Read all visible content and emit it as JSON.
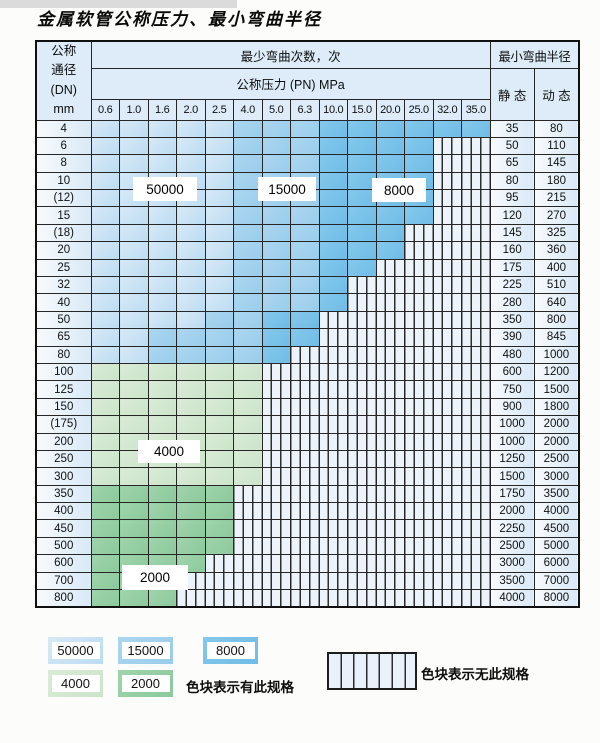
{
  "title": "金属软管公称压力、最小弯曲半径",
  "table": {
    "header": {
      "dn_line1": "公称",
      "dn_line2": "通径",
      "dn_line3": "(DN)",
      "dn_line4": "mm",
      "bend_cycles_label": "最少弯曲次数，次",
      "pressure_label": "公称压力 (PN) MPa",
      "radius_label": "最小弯曲半径",
      "static_label": "静 态",
      "dynamic_label": "动 态"
    }
  },
  "overlays": {
    "v50000": "50000",
    "v15000": "15000",
    "v8000": "8000",
    "v4000": "4000",
    "v2000": "2000"
  },
  "legend": {
    "values": [
      "50000",
      "15000",
      "8000",
      "4000",
      "2000"
    ],
    "has_spec_text": "色块表示有此规格",
    "no_spec_text": "色块表示无此规格"
  },
  "colors": {
    "border": "#262626",
    "header_bg": "#ddecf8",
    "hatch_bg": "#edf3fa",
    "hatch_line": "#2f2f2f",
    "label_cell_grad": [
      "#f7fafd",
      "#d9e9f6"
    ],
    "tiers": {
      "50000": {
        "c1": "#d7e9f7",
        "c2": "#bcdcf2"
      },
      "15000": {
        "c1": "#abd6f0",
        "c2": "#99cdeb"
      },
      "8000": {
        "c1": "#85c8ec",
        "c2": "#6fbce6"
      },
      "4000": {
        "c1": "#daebd7",
        "c2": "#cbe4c9"
      },
      "2000": {
        "c1": "#a0d4ac",
        "c2": "#8cc99c"
      }
    }
  },
  "chart_data": {
    "type": "table",
    "title": "金属软管公称压力、最小弯曲半径",
    "xlabel": "公称压力 (PN) MPa",
    "ylabel": "公称通径 (DN) mm",
    "pressures_mpa": [
      "0.6",
      "1.0",
      "1.6",
      "2.0",
      "2.5",
      "4.0",
      "5.0",
      "6.3",
      "10.0",
      "15.0",
      "20.0",
      "25.0",
      "32.0",
      "35.0"
    ],
    "cell_value_meaning": "最少弯曲次数，次 (null = 无此规格)",
    "radius_columns": [
      "静 态",
      "动 态"
    ],
    "rows": [
      {
        "dn": "4",
        "cycles": [
          50000,
          50000,
          50000,
          50000,
          50000,
          15000,
          15000,
          15000,
          8000,
          8000,
          8000,
          8000,
          8000,
          8000
        ],
        "static": "35",
        "dynamic": "80"
      },
      {
        "dn": "6",
        "cycles": [
          50000,
          50000,
          50000,
          50000,
          50000,
          15000,
          15000,
          15000,
          8000,
          8000,
          8000,
          8000,
          null,
          null
        ],
        "static": "50",
        "dynamic": "110"
      },
      {
        "dn": "8",
        "cycles": [
          50000,
          50000,
          50000,
          50000,
          50000,
          15000,
          15000,
          15000,
          8000,
          8000,
          8000,
          8000,
          null,
          null
        ],
        "static": "65",
        "dynamic": "145"
      },
      {
        "dn": "10",
        "cycles": [
          50000,
          50000,
          50000,
          50000,
          50000,
          15000,
          15000,
          15000,
          8000,
          8000,
          8000,
          8000,
          null,
          null
        ],
        "static": "80",
        "dynamic": "180"
      },
      {
        "dn": "(12)",
        "cycles": [
          50000,
          50000,
          50000,
          50000,
          50000,
          15000,
          15000,
          15000,
          8000,
          8000,
          8000,
          8000,
          null,
          null
        ],
        "static": "95",
        "dynamic": "215"
      },
      {
        "dn": "15",
        "cycles": [
          50000,
          50000,
          50000,
          50000,
          50000,
          15000,
          15000,
          15000,
          8000,
          8000,
          8000,
          8000,
          null,
          null
        ],
        "static": "120",
        "dynamic": "270"
      },
      {
        "dn": "(18)",
        "cycles": [
          50000,
          50000,
          50000,
          50000,
          50000,
          15000,
          15000,
          15000,
          8000,
          8000,
          8000,
          null,
          null,
          null
        ],
        "static": "145",
        "dynamic": "325"
      },
      {
        "dn": "20",
        "cycles": [
          50000,
          50000,
          50000,
          50000,
          50000,
          15000,
          15000,
          15000,
          8000,
          8000,
          8000,
          null,
          null,
          null
        ],
        "static": "160",
        "dynamic": "360"
      },
      {
        "dn": "25",
        "cycles": [
          50000,
          50000,
          50000,
          50000,
          50000,
          15000,
          15000,
          15000,
          8000,
          8000,
          null,
          null,
          null,
          null
        ],
        "static": "175",
        "dynamic": "400"
      },
      {
        "dn": "32",
        "cycles": [
          50000,
          50000,
          50000,
          50000,
          50000,
          15000,
          15000,
          15000,
          8000,
          null,
          null,
          null,
          null,
          null
        ],
        "static": "225",
        "dynamic": "510"
      },
      {
        "dn": "40",
        "cycles": [
          50000,
          50000,
          50000,
          50000,
          50000,
          15000,
          15000,
          15000,
          8000,
          null,
          null,
          null,
          null,
          null
        ],
        "static": "280",
        "dynamic": "640"
      },
      {
        "dn": "50",
        "cycles": [
          50000,
          50000,
          50000,
          50000,
          15000,
          15000,
          8000,
          8000,
          null,
          null,
          null,
          null,
          null,
          null
        ],
        "static": "350",
        "dynamic": "800"
      },
      {
        "dn": "65",
        "cycles": [
          50000,
          50000,
          15000,
          15000,
          15000,
          15000,
          8000,
          8000,
          null,
          null,
          null,
          null,
          null,
          null
        ],
        "static": "390",
        "dynamic": "845"
      },
      {
        "dn": "80",
        "cycles": [
          50000,
          50000,
          15000,
          15000,
          15000,
          15000,
          8000,
          null,
          null,
          null,
          null,
          null,
          null,
          null
        ],
        "static": "480",
        "dynamic": "1000"
      },
      {
        "dn": "100",
        "cycles": [
          4000,
          4000,
          4000,
          4000,
          4000,
          4000,
          null,
          null,
          null,
          null,
          null,
          null,
          null,
          null
        ],
        "static": "600",
        "dynamic": "1200"
      },
      {
        "dn": "125",
        "cycles": [
          4000,
          4000,
          4000,
          4000,
          4000,
          4000,
          null,
          null,
          null,
          null,
          null,
          null,
          null,
          null
        ],
        "static": "750",
        "dynamic": "1500"
      },
      {
        "dn": "150",
        "cycles": [
          4000,
          4000,
          4000,
          4000,
          4000,
          4000,
          null,
          null,
          null,
          null,
          null,
          null,
          null,
          null
        ],
        "static": "900",
        "dynamic": "1800"
      },
      {
        "dn": "(175)",
        "cycles": [
          4000,
          4000,
          4000,
          4000,
          4000,
          4000,
          null,
          null,
          null,
          null,
          null,
          null,
          null,
          null
        ],
        "static": "1000",
        "dynamic": "2000"
      },
      {
        "dn": "200",
        "cycles": [
          4000,
          4000,
          4000,
          4000,
          4000,
          4000,
          null,
          null,
          null,
          null,
          null,
          null,
          null,
          null
        ],
        "static": "1000",
        "dynamic": "2000"
      },
      {
        "dn": "250",
        "cycles": [
          4000,
          4000,
          4000,
          4000,
          4000,
          4000,
          null,
          null,
          null,
          null,
          null,
          null,
          null,
          null
        ],
        "static": "1250",
        "dynamic": "2500"
      },
      {
        "dn": "300",
        "cycles": [
          4000,
          4000,
          4000,
          4000,
          4000,
          4000,
          null,
          null,
          null,
          null,
          null,
          null,
          null,
          null
        ],
        "static": "1500",
        "dynamic": "3000"
      },
      {
        "dn": "350",
        "cycles": [
          2000,
          2000,
          2000,
          2000,
          2000,
          null,
          null,
          null,
          null,
          null,
          null,
          null,
          null,
          null
        ],
        "static": "1750",
        "dynamic": "3500"
      },
      {
        "dn": "400",
        "cycles": [
          2000,
          2000,
          2000,
          2000,
          2000,
          null,
          null,
          null,
          null,
          null,
          null,
          null,
          null,
          null
        ],
        "static": "2000",
        "dynamic": "4000"
      },
      {
        "dn": "450",
        "cycles": [
          2000,
          2000,
          2000,
          2000,
          2000,
          null,
          null,
          null,
          null,
          null,
          null,
          null,
          null,
          null
        ],
        "static": "2250",
        "dynamic": "4500"
      },
      {
        "dn": "500",
        "cycles": [
          2000,
          2000,
          2000,
          2000,
          2000,
          null,
          null,
          null,
          null,
          null,
          null,
          null,
          null,
          null
        ],
        "static": "2500",
        "dynamic": "5000"
      },
      {
        "dn": "600",
        "cycles": [
          2000,
          2000,
          2000,
          2000,
          null,
          null,
          null,
          null,
          null,
          null,
          null,
          null,
          null,
          null
        ],
        "static": "3000",
        "dynamic": "6000"
      },
      {
        "dn": "700",
        "cycles": [
          2000,
          2000,
          2000,
          null,
          null,
          null,
          null,
          null,
          null,
          null,
          null,
          null,
          null,
          null
        ],
        "static": "3500",
        "dynamic": "7000"
      },
      {
        "dn": "800",
        "cycles": [
          2000,
          2000,
          2000,
          null,
          null,
          null,
          null,
          null,
          null,
          null,
          null,
          null,
          null,
          null
        ],
        "static": "4000",
        "dynamic": "8000"
      }
    ]
  }
}
